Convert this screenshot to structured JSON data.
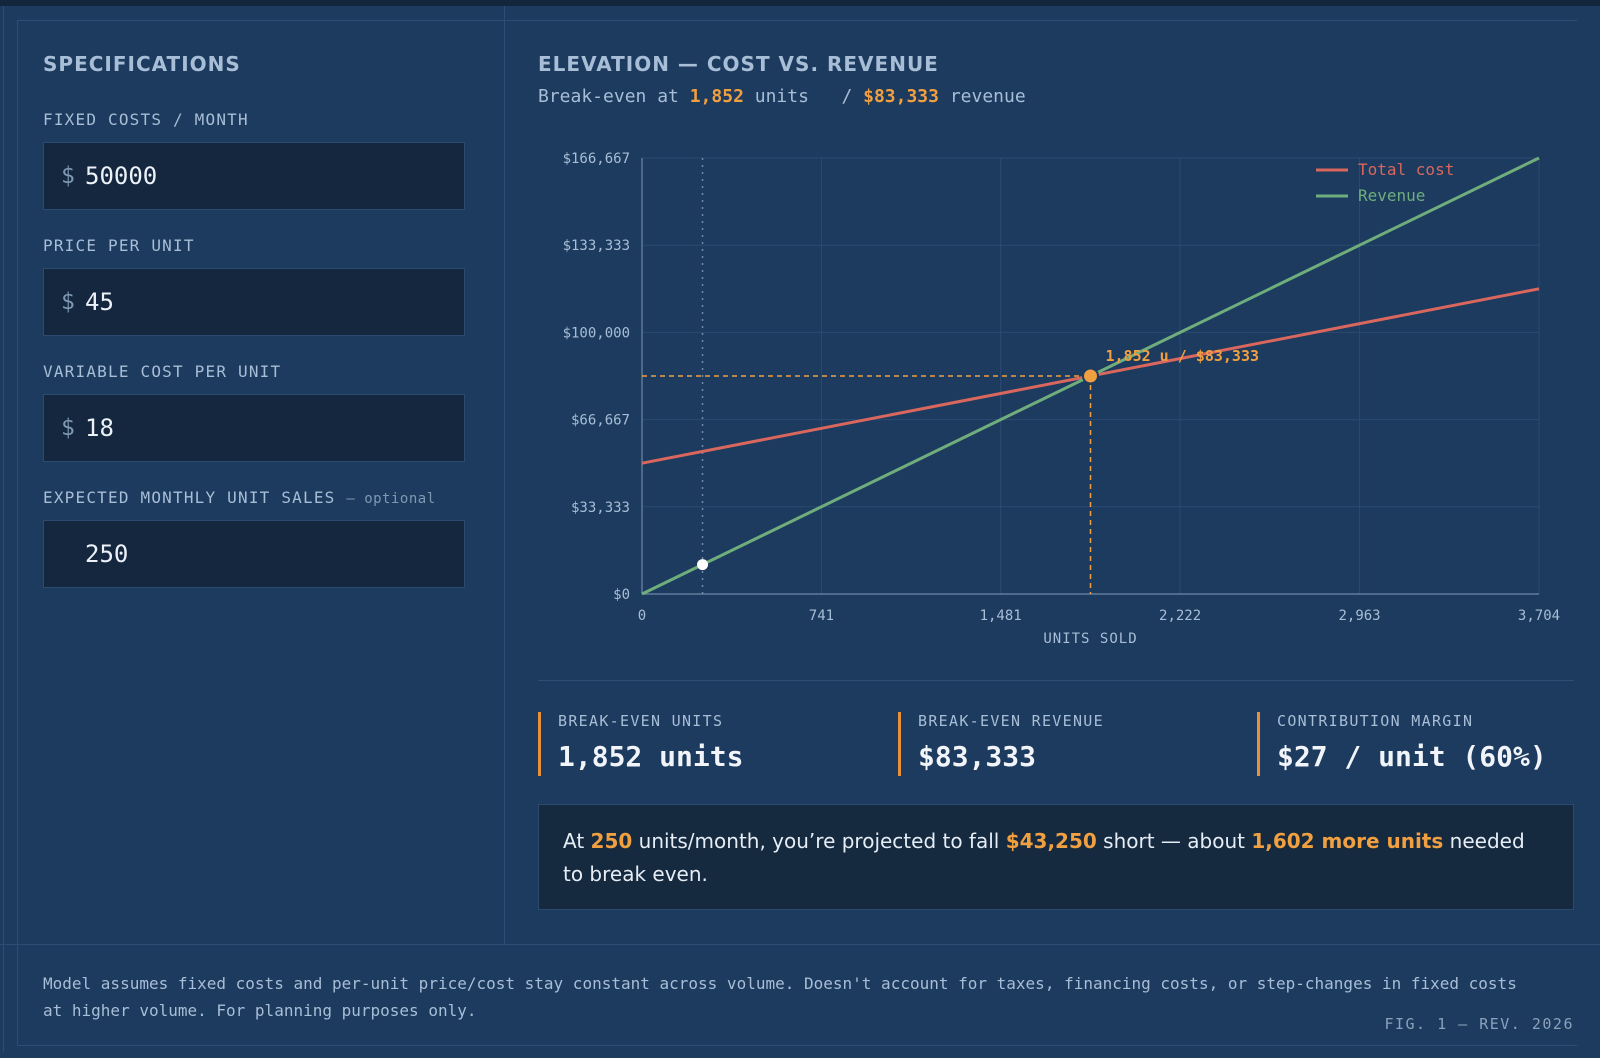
{
  "specifications": {
    "title": "SPECIFICATIONS",
    "fields": [
      {
        "label": "FIXED COSTS / MONTH",
        "currency": "$",
        "value": "50000"
      },
      {
        "label": "PRICE PER UNIT",
        "currency": "$",
        "value": "45"
      },
      {
        "label": "VARIABLE COST PER UNIT",
        "currency": "$",
        "value": "18"
      },
      {
        "label": "EXPECTED MONTHLY UNIT SALES",
        "optional": "— optional",
        "currency": "",
        "value": "250"
      }
    ]
  },
  "chart": {
    "title": "ELEVATION — COST VS. REVENUE",
    "subtitle": {
      "prefix": "Break-even at ",
      "units": "1,852",
      "units_suffix": " units",
      "sep": "   / ",
      "revenue": "$83,333",
      "revenue_suffix": " revenue"
    },
    "breakeven_label": "1,852 u / $83,333"
  },
  "chart_data": {
    "type": "line",
    "xlabel": "UNITS SOLD",
    "ylabel": "",
    "xlim": [
      0,
      3704
    ],
    "ylim": [
      0,
      166667
    ],
    "x_ticks": [
      0,
      741,
      1481,
      2222,
      2963,
      3704
    ],
    "x_tick_labels": [
      "0",
      "741",
      "1,481",
      "2,222",
      "2,963",
      "3,704"
    ],
    "y_ticks": [
      0,
      33333,
      66667,
      100000,
      133333,
      166667
    ],
    "y_tick_labels": [
      "$0",
      "$33,333",
      "$66,667",
      "$100,000",
      "$133,333",
      "$166,667"
    ],
    "grid": true,
    "legend": "top-right",
    "series": [
      {
        "name": "Total cost",
        "color": "#d9675d",
        "x": [
          0,
          3704
        ],
        "y": [
          50000,
          116672
        ]
      },
      {
        "name": "Revenue",
        "color": "#6fae7c",
        "x": [
          0,
          3704
        ],
        "y": [
          0,
          166680
        ]
      }
    ],
    "breakeven_point": {
      "x": 1852,
      "y": 83333,
      "color": "#f0a040"
    },
    "expected_point": {
      "x": 250,
      "y": 11250,
      "color": "#ffffff"
    }
  },
  "metrics": [
    {
      "label": "BREAK-EVEN UNITS",
      "value": "1,852 units"
    },
    {
      "label": "BREAK-EVEN REVENUE",
      "value": "$83,333"
    },
    {
      "label": "CONTRIBUTION MARGIN",
      "value": "$27 / unit (60%)"
    }
  ],
  "callout": {
    "t1": "At ",
    "units": "250",
    "t2": " units/month, you’re projected to fall ",
    "shortfall": "$43,250",
    "t3": " short — about ",
    "more": "1,602 more units",
    "t4": " needed to break even."
  },
  "footer": {
    "note": "Model assumes fixed costs and per-unit price/cost stay constant across volume. Doesn't account for taxes, financing costs, or step-changes in fixed costs at higher volume. For planning purposes only.",
    "fig": "FIG. 1 — REV. 2026"
  }
}
